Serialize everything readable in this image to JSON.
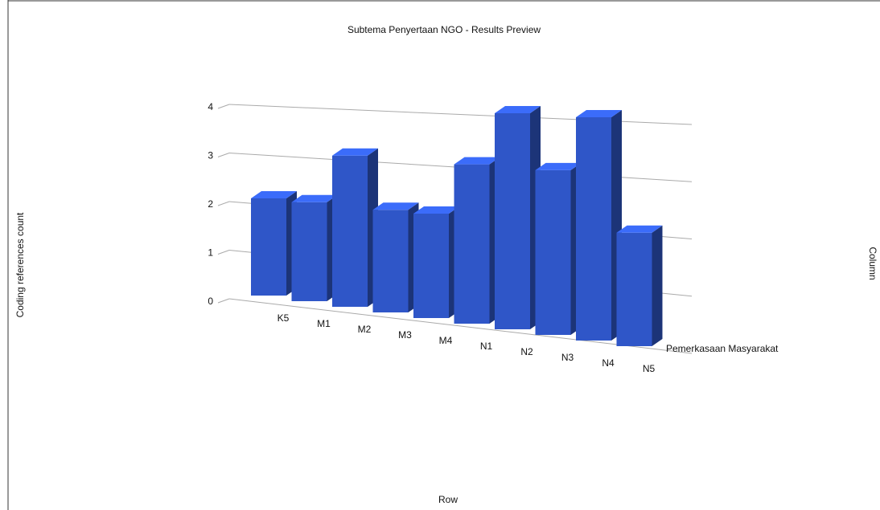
{
  "chart_data": {
    "type": "bar3d",
    "title": "Subtema Penyertaan NGO - Results Preview",
    "y_label": "Coding references count",
    "x_label": "Row",
    "z_label": "Column",
    "categories": [
      "K5",
      "M1",
      "M2",
      "M3",
      "M4",
      "N1",
      "N2",
      "N3",
      "N4",
      "N5"
    ],
    "series": [
      {
        "name": "Pemerkasaan Masyarakat",
        "color": "#2f56c8",
        "values": [
          2,
          2,
          3,
          2,
          2,
          3,
          4,
          3,
          4,
          2
        ]
      }
    ],
    "ylim": [
      0,
      4
    ],
    "yticks": [
      0,
      1,
      2,
      3,
      4
    ],
    "grid": true
  }
}
